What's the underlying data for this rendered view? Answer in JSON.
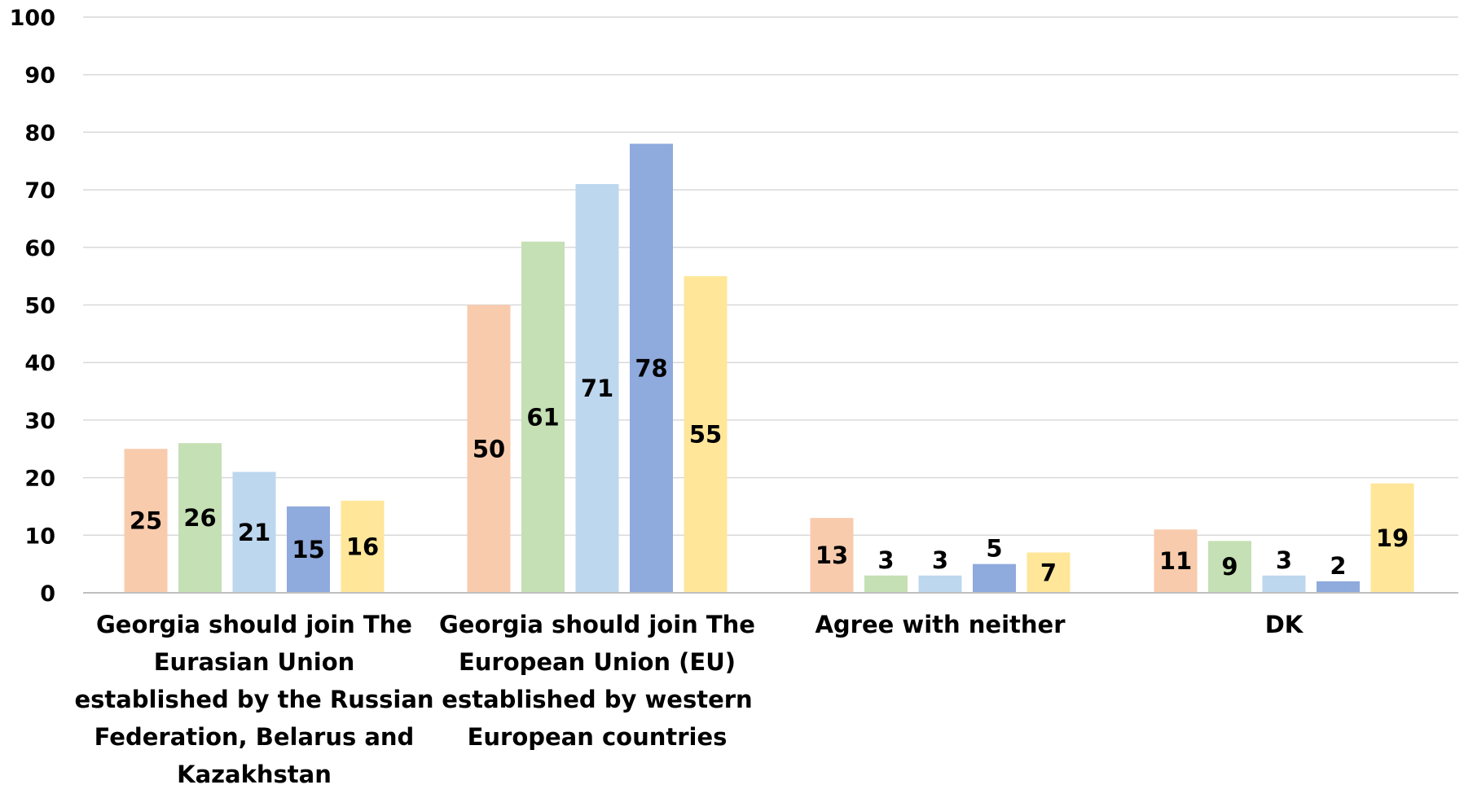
{
  "chart_data": {
    "type": "bar",
    "title": "",
    "xlabel": "",
    "ylabel": "",
    "ylim": [
      0,
      100
    ],
    "yticks": [
      0,
      10,
      20,
      30,
      40,
      50,
      60,
      70,
      80,
      90,
      100
    ],
    "grid": true,
    "legend": "none",
    "categories": [
      "Georgia should join The Eurasian Union established by the Russian Federation, Belarus and Kazakhstan",
      "Georgia should  join The European Union (EU) established by western European countries",
      "Agree with neither",
      "DK"
    ],
    "category_lines": [
      [
        "Georgia should join The",
        "Eurasian Union",
        "established by the Russian",
        "Federation, Belarus and",
        "Kazakhstan"
      ],
      [
        "Georgia should  join The",
        "European Union (EU)",
        "established by western",
        "European countries"
      ],
      [
        "Agree with neither"
      ],
      [
        "DK"
      ]
    ],
    "series": [
      {
        "color": "#F8CBAD",
        "values": [
          25,
          50,
          13,
          11
        ]
      },
      {
        "color": "#C5E0B4",
        "values": [
          26,
          61,
          3,
          9
        ]
      },
      {
        "color": "#BDD7EE",
        "values": [
          21,
          71,
          3,
          3
        ]
      },
      {
        "color": "#8FAADC",
        "values": [
          15,
          78,
          5,
          2
        ]
      },
      {
        "color": "#FFE699",
        "values": [
          16,
          55,
          7,
          19
        ]
      }
    ]
  }
}
